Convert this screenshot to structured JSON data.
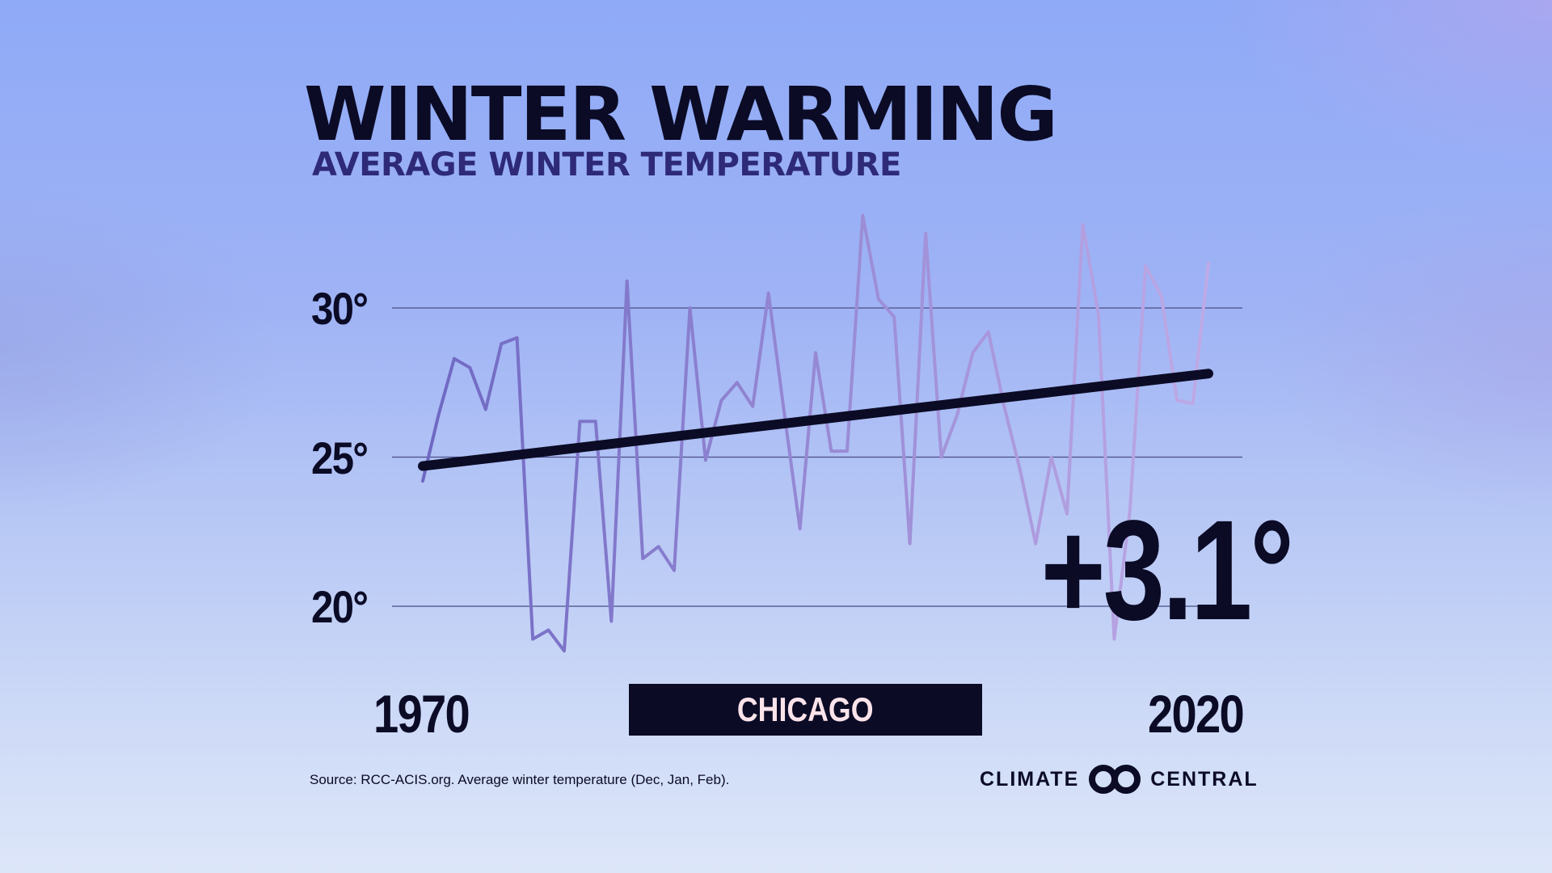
{
  "title": "WINTER WARMING",
  "subtitle": "AVERAGE WINTER TEMPERATURE",
  "location": "CHICAGO",
  "change_label": "+3.1°",
  "source": "Source: RCC-ACIS.org. Average winter temperature (Dec, Jan, Feb).",
  "branding": {
    "left_word": "CLIMATE",
    "right_word": "CENTRAL",
    "logo_icon": "double-circle-icon"
  },
  "colors": {
    "text_dark": "#0b0b26",
    "subtitle": "#2e2a78",
    "line_start": "#6e68c2",
    "line_end": "#bfaae6",
    "trend": "#0b0b26",
    "gridline": "#4a4e86",
    "city_text": "#fbe3ea"
  },
  "chart_data": {
    "type": "line",
    "title": "WINTER WARMING",
    "subtitle": "AVERAGE WINTER TEMPERATURE",
    "xlabel": "",
    "ylabel": "",
    "x_tick_labels": [
      "1970",
      "2020"
    ],
    "y_ticks": [
      {
        "value": 30,
        "label": "30°"
      },
      {
        "value": 25,
        "label": "25°"
      },
      {
        "value": 20,
        "label": "20°"
      }
    ],
    "ylim": [
      18.5,
      33.5
    ],
    "xlim": [
      1970,
      2020
    ],
    "grid": true,
    "series": [
      {
        "name": "Average winter temperature",
        "x": [
          1970,
          1971,
          1972,
          1973,
          1974,
          1975,
          1976,
          1977,
          1978,
          1979,
          1980,
          1981,
          1982,
          1983,
          1984,
          1985,
          1986,
          1987,
          1988,
          1989,
          1990,
          1991,
          1992,
          1993,
          1994,
          1995,
          1996,
          1997,
          1998,
          1999,
          2000,
          2001,
          2002,
          2003,
          2004,
          2005,
          2006,
          2007,
          2008,
          2009,
          2010,
          2011,
          2012,
          2013,
          2014,
          2015,
          2016,
          2017,
          2018,
          2019,
          2020
        ],
        "values": [
          24.2,
          26.4,
          28.3,
          28.0,
          26.6,
          28.8,
          29.0,
          18.9,
          19.2,
          18.5,
          26.2,
          26.2,
          19.5,
          30.9,
          21.6,
          22.0,
          21.2,
          30.0,
          24.9,
          26.9,
          27.5,
          26.7,
          30.5,
          26.5,
          22.6,
          28.5,
          25.2,
          25.2,
          33.1,
          30.3,
          29.7,
          22.1,
          32.5,
          25.0,
          26.4,
          28.5,
          29.2,
          26.7,
          24.6,
          22.1,
          25.0,
          23.1,
          32.8,
          29.8,
          18.9,
          23.2,
          31.4,
          30.4,
          26.9,
          26.8,
          31.5
        ]
      },
      {
        "name": "Trend",
        "x": [
          1970,
          2020
        ],
        "values": [
          24.7,
          27.8
        ]
      }
    ],
    "annotations": [
      "+3.1°"
    ]
  }
}
